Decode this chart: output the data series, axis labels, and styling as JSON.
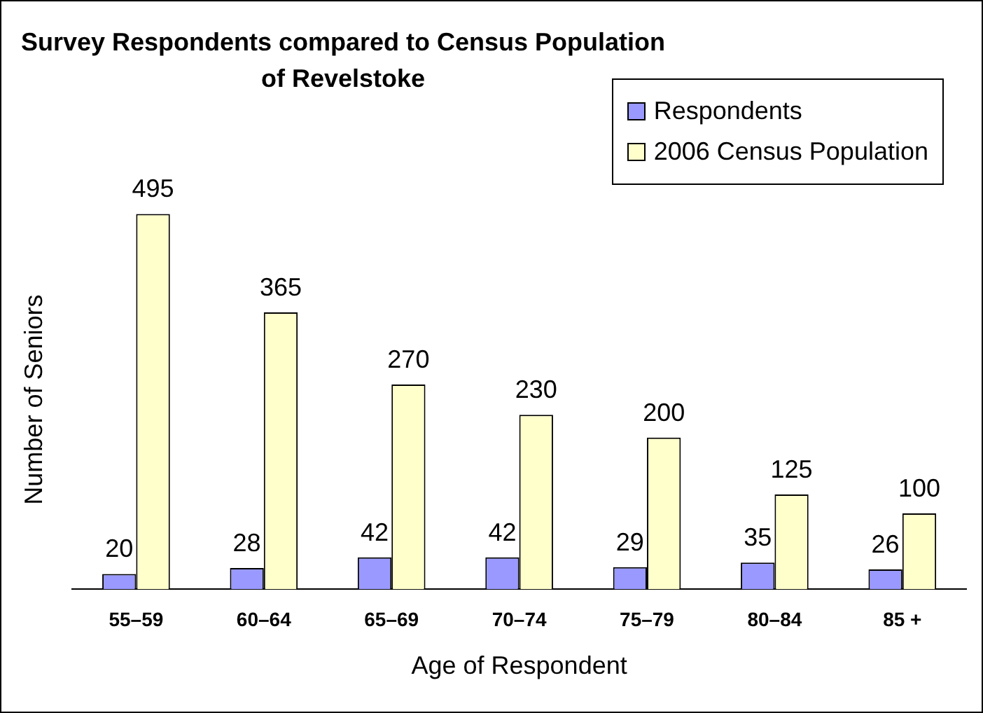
{
  "chart_data": {
    "type": "bar",
    "title": "Survey Respondents compared to Census Population of Revelstoke",
    "xlabel": "Age of Respondent",
    "ylabel": "Number of Seniors",
    "categories": [
      "55–59",
      "60–64",
      "65–69",
      "70–74",
      "75–79",
      "80–84",
      "85 +"
    ],
    "series": [
      {
        "name": "Respondents",
        "color": "#9999ff",
        "values": [
          20,
          28,
          42,
          42,
          29,
          35,
          26
        ]
      },
      {
        "name": "2006 Census Population",
        "color": "#ffffcc",
        "values": [
          495,
          365,
          270,
          230,
          200,
          125,
          100
        ]
      }
    ],
    "data_labels": true,
    "legend": "top right",
    "grid": false,
    "tick_labels": "x"
  }
}
